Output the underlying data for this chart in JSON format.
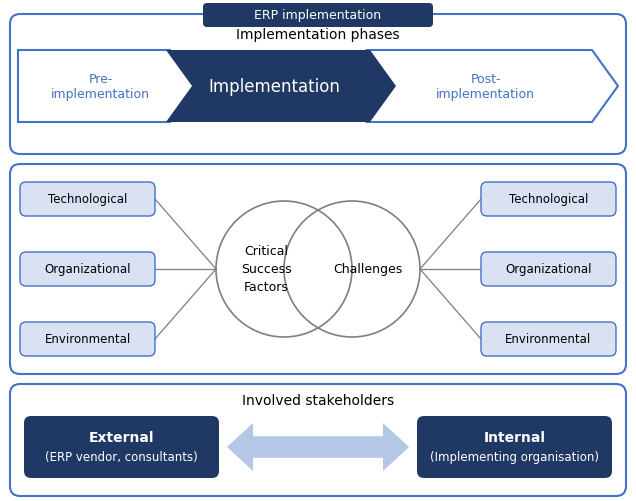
{
  "dark_blue": "#1F3864",
  "light_blue_bg": "#D9E1F2",
  "light_blue_border": "#4472C4",
  "arrow_fill": "#B4C7E7",
  "white": "#FFFFFF",
  "erp_label": "ERP implementation",
  "phases_label": "Implementation phases",
  "phase1": "Pre-\nimplementation",
  "phase2": "Implementation",
  "phase3": "Post-\nimplementation",
  "left_boxes": [
    "Technological",
    "Organizational",
    "Environmental"
  ],
  "right_boxes": [
    "Technological",
    "Organizational",
    "Environmental"
  ],
  "csf_label": "Critical\nSuccess\nFactors",
  "challenges_label": "Challenges",
  "stakeholders_label": "Involved stakeholders",
  "external_title": "External",
  "external_sub": "(ERP vendor, consultants)",
  "internal_title": "Internal",
  "internal_sub": "(Implementing organisation)",
  "fig_w": 6.36,
  "fig_h": 5.02,
  "dpi": 100
}
